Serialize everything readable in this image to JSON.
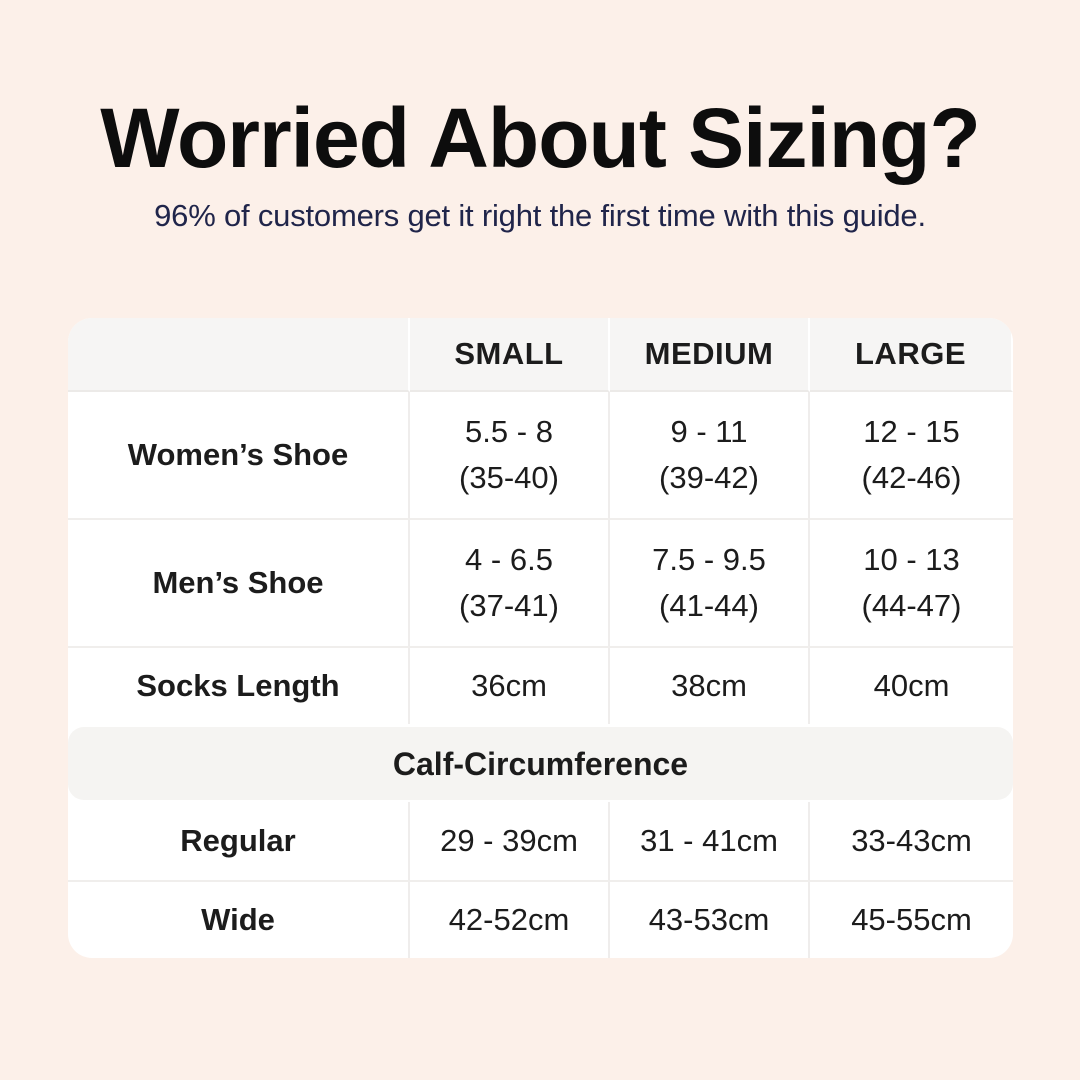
{
  "page": {
    "title": "Worried About Sizing?",
    "subtitle": "96% of customers get it right the first time with this guide.",
    "colors": {
      "background": "#fcf0e9",
      "card": "#ffffff",
      "header_band": "#f6f5f4",
      "title_text": "#0d0d0d",
      "subtitle_text": "#20254a",
      "table_text": "#1c1c1c"
    }
  },
  "table": {
    "columns": [
      "SMALL",
      "MEDIUM",
      "LARGE"
    ],
    "shoe_rows": [
      {
        "label": "Women’s Shoe",
        "small": [
          "5.5 - 8",
          "(35-40)"
        ],
        "medium": [
          "9 - 11",
          "(39-42)"
        ],
        "large": [
          "12 - 15",
          "(42-46)"
        ]
      },
      {
        "label": "Men’s Shoe",
        "small": [
          "4 - 6.5",
          "(37-41)"
        ],
        "medium": [
          "7.5 - 9.5",
          "(41-44)"
        ],
        "large": [
          "10 - 13",
          "(44-47)"
        ]
      }
    ],
    "socks_row": {
      "label": "Socks Length",
      "small": "36cm",
      "medium": "38cm",
      "large": "40cm"
    },
    "section_header": "Calf-Circumference",
    "calf_rows": [
      {
        "label": "Regular",
        "small": "29 - 39cm",
        "medium": "31 - 41cm",
        "large": "33-43cm"
      },
      {
        "label": "Wide",
        "small": "42-52cm",
        "medium": "43-53cm",
        "large": "45-55cm"
      }
    ]
  },
  "chart_data": {
    "type": "table",
    "title": "Worried About Sizing?",
    "subtitle": "96% of customers get it right the first time with this guide.",
    "columns": [
      "",
      "SMALL",
      "MEDIUM",
      "LARGE"
    ],
    "rows": [
      [
        "Women’s Shoe",
        "5.5 - 8 (35-40)",
        "9 - 11 (39-42)",
        "12 - 15 (42-46)"
      ],
      [
        "Men’s Shoe",
        "4 - 6.5 (37-41)",
        "7.5 - 9.5 (41-44)",
        "10 - 13 (44-47)"
      ],
      [
        "Socks Length",
        "36cm",
        "38cm",
        "40cm"
      ],
      [
        "Calf-Circumference",
        "",
        "",
        ""
      ],
      [
        "Regular",
        "29 - 39cm",
        "31 - 41cm",
        "33-43cm"
      ],
      [
        "Wide",
        "42-52cm",
        "43-53cm",
        "45-55cm"
      ]
    ]
  }
}
